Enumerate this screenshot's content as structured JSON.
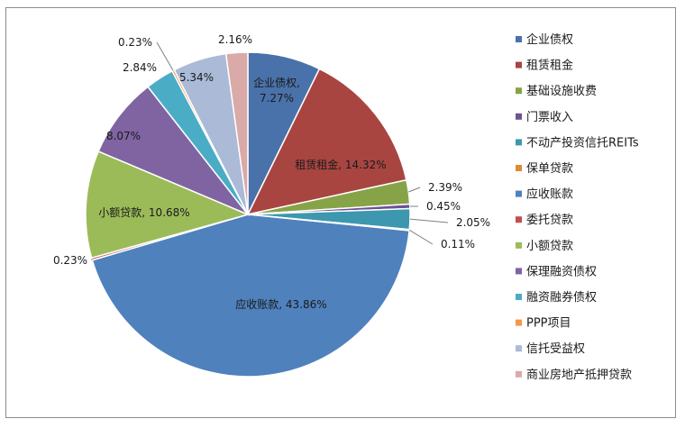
{
  "chart_data": {
    "type": "pie",
    "legend_position": "right",
    "slices": [
      {
        "name": "企业债权",
        "value": 7.27,
        "color": "#4a72aa",
        "label": "企业债权, 7.27%"
      },
      {
        "name": "租赁租金",
        "value": 14.32,
        "color": "#a84541",
        "label": "租赁租金, 14.32%"
      },
      {
        "name": "基础设施收费",
        "value": 2.39,
        "color": "#86a447",
        "label": "2.39%"
      },
      {
        "name": "门票收入",
        "value": 0.45,
        "color": "#6e5294",
        "label": "0.45%"
      },
      {
        "name": "不动产投资信托REITs",
        "value": 2.05,
        "color": "#3d97ae",
        "label": "2.05%"
      },
      {
        "name": "保单贷款",
        "value": 0.11,
        "color": "#e08b34",
        "label": "0.11%"
      },
      {
        "name": "应收账款",
        "value": 43.86,
        "color": "#4f81bd",
        "label": "应收账款, 43.86%"
      },
      {
        "name": "委托贷款",
        "value": 0.23,
        "color": "#c0504d",
        "label": "0.23%"
      },
      {
        "name": "小额贷款",
        "value": 10.68,
        "color": "#9bbb59",
        "label": "小额贷款, 10.68%"
      },
      {
        "name": "保理融资债权",
        "value": 8.07,
        "color": "#8064a2",
        "label": "8.07%"
      },
      {
        "name": "融资融券债权",
        "value": 2.84,
        "color": "#4bacc6",
        "label": "2.84%"
      },
      {
        "name": "PPP项目",
        "value": 0.23,
        "color": "#f79646",
        "label": "0.23%"
      },
      {
        "name": "信托受益权",
        "value": 5.34,
        "color": "#aabad7",
        "label": "5.34%"
      },
      {
        "name": "商业房地产抵押贷款",
        "value": 2.16,
        "color": "#d9aaa8",
        "label": "2.16%"
      }
    ]
  }
}
